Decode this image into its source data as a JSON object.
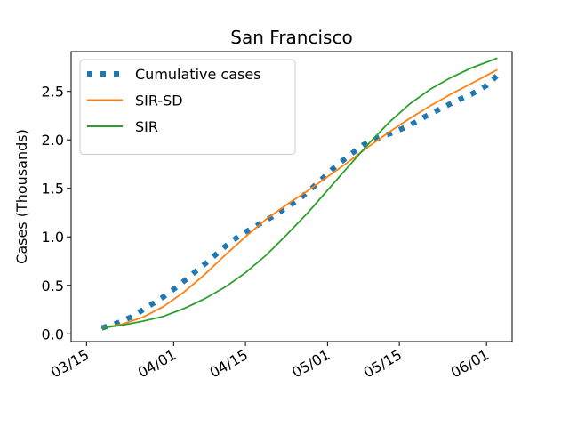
{
  "chart_data": {
    "type": "line",
    "title": "San Francisco",
    "xlabel": "",
    "ylabel": "Cases (Thousands)",
    "x_axis": {
      "type": "date",
      "ticks": [
        {
          "date": "2020-03-15",
          "label": "03/15"
        },
        {
          "date": "2020-04-01",
          "label": "04/01"
        },
        {
          "date": "2020-04-15",
          "label": "04/15"
        },
        {
          "date": "2020-05-01",
          "label": "05/01"
        },
        {
          "date": "2020-05-15",
          "label": "05/15"
        },
        {
          "date": "2020-06-01",
          "label": "06/01"
        }
      ],
      "xlim": [
        "2020-03-12",
        "2020-06-06"
      ]
    },
    "y_axis": {
      "ticks": [
        0.0,
        0.5,
        1.0,
        1.5,
        2.0,
        2.5
      ],
      "tick_labels": [
        "0.0",
        "0.5",
        "1.0",
        "1.5",
        "2.0",
        "2.5"
      ],
      "ylim": [
        -0.08,
        2.91
      ]
    },
    "grid": false,
    "legend": "top-left",
    "series": [
      {
        "name": "Cumulative cases",
        "color": "#1f77b4",
        "style": "dotted",
        "points": [
          [
            "2020-03-18",
            0.06
          ],
          [
            "2020-03-21",
            0.11
          ],
          [
            "2020-03-24",
            0.18
          ],
          [
            "2020-03-27",
            0.28
          ],
          [
            "2020-03-30",
            0.38
          ],
          [
            "2020-04-02",
            0.5
          ],
          [
            "2020-04-05",
            0.63
          ],
          [
            "2020-04-08",
            0.76
          ],
          [
            "2020-04-11",
            0.9
          ],
          [
            "2020-04-14",
            1.02
          ],
          [
            "2020-04-17",
            1.11
          ],
          [
            "2020-04-20",
            1.2
          ],
          [
            "2020-04-23",
            1.3
          ],
          [
            "2020-04-26",
            1.41
          ],
          [
            "2020-04-29",
            1.55
          ],
          [
            "2020-05-02",
            1.7
          ],
          [
            "2020-05-05",
            1.83
          ],
          [
            "2020-05-08",
            1.95
          ],
          [
            "2020-05-11",
            2.02
          ],
          [
            "2020-05-14",
            2.08
          ],
          [
            "2020-05-17",
            2.15
          ],
          [
            "2020-05-20",
            2.24
          ],
          [
            "2020-05-23",
            2.32
          ],
          [
            "2020-05-26",
            2.4
          ],
          [
            "2020-05-29",
            2.47
          ],
          [
            "2020-06-01",
            2.56
          ],
          [
            "2020-06-03",
            2.66
          ]
        ]
      },
      {
        "name": "SIR-SD",
        "color": "#ff7f0e",
        "style": "solid",
        "points": [
          [
            "2020-03-18",
            0.06
          ],
          [
            "2020-03-22",
            0.1
          ],
          [
            "2020-03-26",
            0.17
          ],
          [
            "2020-03-30",
            0.28
          ],
          [
            "2020-04-03",
            0.43
          ],
          [
            "2020-04-07",
            0.61
          ],
          [
            "2020-04-11",
            0.81
          ],
          [
            "2020-04-15",
            1.0
          ],
          [
            "2020-04-19",
            1.18
          ],
          [
            "2020-04-23",
            1.33
          ],
          [
            "2020-04-27",
            1.47
          ],
          [
            "2020-05-01",
            1.62
          ],
          [
            "2020-05-05",
            1.77
          ],
          [
            "2020-05-09",
            1.93
          ],
          [
            "2020-05-13",
            2.08
          ],
          [
            "2020-05-17",
            2.22
          ],
          [
            "2020-05-21",
            2.35
          ],
          [
            "2020-05-25",
            2.47
          ],
          [
            "2020-05-29",
            2.58
          ],
          [
            "2020-06-03",
            2.72
          ]
        ]
      },
      {
        "name": "SIR",
        "color": "#2ca02c",
        "style": "solid",
        "points": [
          [
            "2020-03-18",
            0.06
          ],
          [
            "2020-03-22",
            0.09
          ],
          [
            "2020-03-26",
            0.13
          ],
          [
            "2020-03-30",
            0.18
          ],
          [
            "2020-04-03",
            0.26
          ],
          [
            "2020-04-07",
            0.36
          ],
          [
            "2020-04-11",
            0.48
          ],
          [
            "2020-04-15",
            0.63
          ],
          [
            "2020-04-19",
            0.81
          ],
          [
            "2020-04-23",
            1.02
          ],
          [
            "2020-04-27",
            1.24
          ],
          [
            "2020-05-01",
            1.48
          ],
          [
            "2020-05-05",
            1.72
          ],
          [
            "2020-05-09",
            1.96
          ],
          [
            "2020-05-13",
            2.18
          ],
          [
            "2020-05-17",
            2.37
          ],
          [
            "2020-05-21",
            2.52
          ],
          [
            "2020-05-25",
            2.64
          ],
          [
            "2020-05-29",
            2.74
          ],
          [
            "2020-06-03",
            2.84
          ]
        ]
      }
    ]
  }
}
